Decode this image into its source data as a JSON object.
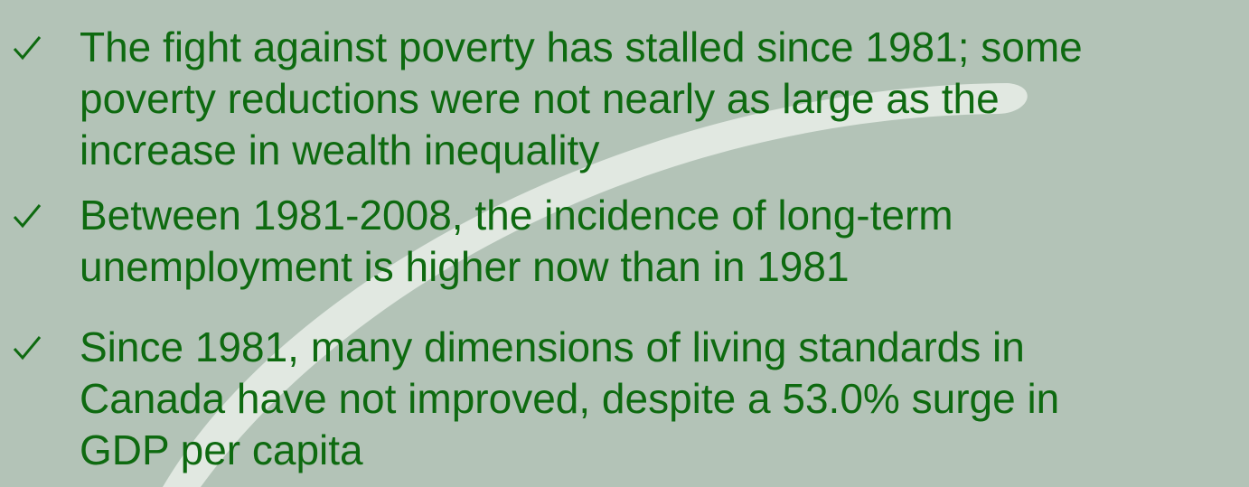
{
  "bullets": [
    {
      "lines": [
        "The fight against poverty has stalled since 1981; some",
        "poverty reductions were not nearly as large as the",
        "increase in wealth inequality"
      ]
    },
    {
      "lines": [
        "Between 1981-2008, the incidence of long-term",
        "unemployment is higher now than in 1981"
      ]
    },
    {
      "lines": [
        "Since 1981, many dimensions of living standards in",
        "Canada have not improved, despite a 53.0% surge in",
        "GDP per capita"
      ]
    }
  ]
}
